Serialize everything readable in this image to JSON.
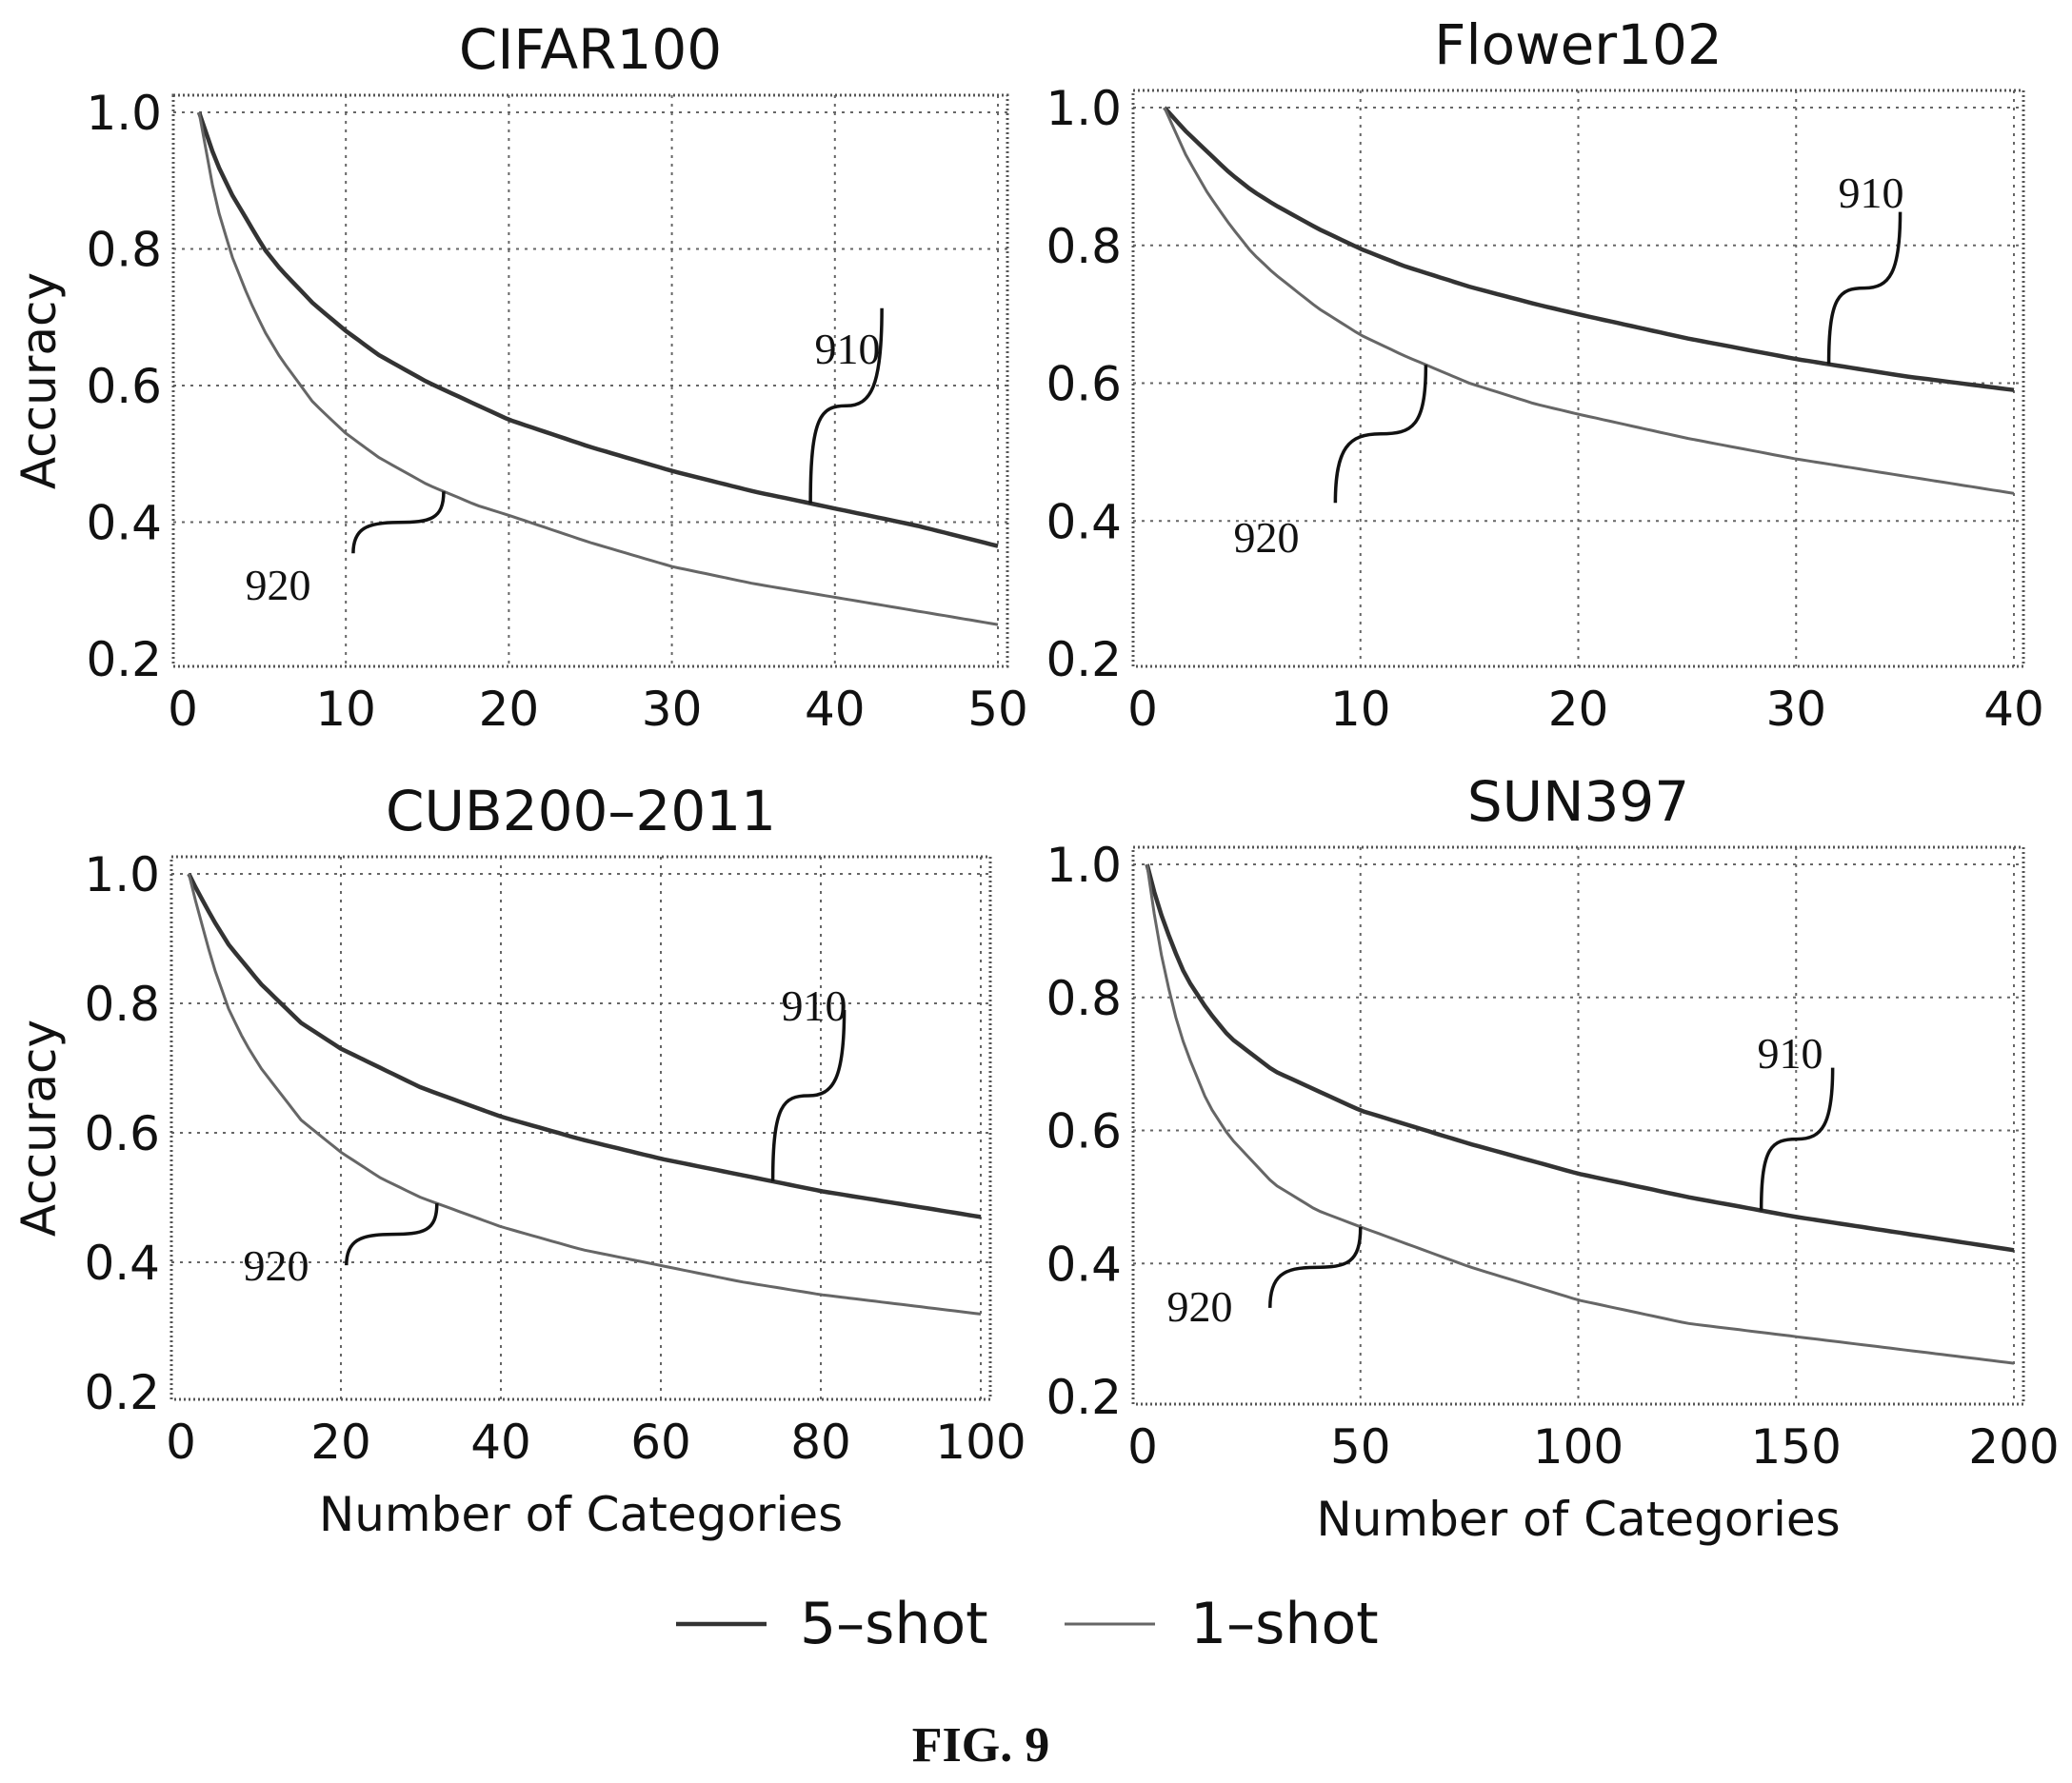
{
  "figure_label": "FIG. 9",
  "legend": {
    "entries": [
      {
        "label": "5–shot",
        "series": "5-shot"
      },
      {
        "label": "1–shot",
        "series": "1-shot"
      }
    ],
    "placement": "bottom-center"
  },
  "colors": {
    "five_shot": "#333333",
    "one_shot": "#666666",
    "grid": "#666666",
    "frame": "#555555"
  },
  "chart_data": [
    {
      "type": "line",
      "title": "CIFAR100",
      "xlabel": "",
      "ylabel": "Accuracy",
      "xlim": [
        0,
        50
      ],
      "ylim": [
        0.2,
        1.0
      ],
      "xticks": [
        "0",
        "10",
        "20",
        "30",
        "40",
        "50"
      ],
      "yticks": [
        "0.2",
        "0.4",
        "0.6",
        "0.8",
        "1.0"
      ],
      "grid": true,
      "x": [
        1,
        2,
        3,
        4,
        5,
        6,
        8,
        10,
        12,
        15,
        18,
        20,
        25,
        30,
        35,
        40,
        45,
        50
      ],
      "series": [
        {
          "name": "5-shot",
          "callout": "910",
          "values": [
            1.0,
            0.93,
            0.88,
            0.84,
            0.8,
            0.77,
            0.72,
            0.68,
            0.645,
            0.605,
            0.572,
            0.55,
            0.51,
            0.475,
            0.445,
            0.42,
            0.395,
            0.365
          ]
        },
        {
          "name": "1-shot",
          "callout": "920",
          "values": [
            1.0,
            0.87,
            0.79,
            0.73,
            0.68,
            0.64,
            0.575,
            0.53,
            0.495,
            0.455,
            0.425,
            0.41,
            0.37,
            0.335,
            0.31,
            0.29,
            0.27,
            0.25
          ]
        }
      ]
    },
    {
      "type": "line",
      "title": "Flower102",
      "xlabel": "",
      "ylabel": "",
      "xlim": [
        0,
        40
      ],
      "ylim": [
        0.2,
        1.0
      ],
      "xticks": [
        "0",
        "10",
        "20",
        "30",
        "40"
      ],
      "yticks": [
        "0.2",
        "0.4",
        "0.6",
        "0.8",
        "1.0"
      ],
      "grid": true,
      "x": [
        1,
        2,
        3,
        4,
        5,
        6,
        8,
        10,
        12,
        15,
        18,
        20,
        25,
        30,
        35,
        40
      ],
      "series": [
        {
          "name": "5-shot",
          "callout": "910",
          "values": [
            1.0,
            0.965,
            0.935,
            0.905,
            0.88,
            0.86,
            0.825,
            0.795,
            0.77,
            0.74,
            0.715,
            0.7,
            0.665,
            0.635,
            0.61,
            0.59
          ]
        },
        {
          "name": "1-shot",
          "callout": "920",
          "values": [
            1.0,
            0.93,
            0.875,
            0.83,
            0.79,
            0.76,
            0.71,
            0.67,
            0.64,
            0.6,
            0.57,
            0.555,
            0.52,
            0.49,
            0.465,
            0.44
          ]
        }
      ]
    },
    {
      "type": "line",
      "title": "CUB200–2011",
      "xlabel": "Number of Categories",
      "ylabel": "Accuracy",
      "xlim": [
        0,
        100
      ],
      "ylim": [
        0.2,
        1.0
      ],
      "xticks": [
        "0",
        "20",
        "40",
        "60",
        "80",
        "100"
      ],
      "yticks": [
        "0.2",
        "0.4",
        "0.6",
        "0.8",
        "1.0"
      ],
      "grid": true,
      "x": [
        1,
        2,
        4,
        6,
        8,
        10,
        15,
        20,
        25,
        30,
        40,
        50,
        60,
        70,
        80,
        90,
        100
      ],
      "series": [
        {
          "name": "5-shot",
          "callout": "910",
          "values": [
            1.0,
            0.975,
            0.93,
            0.89,
            0.86,
            0.83,
            0.77,
            0.73,
            0.7,
            0.67,
            0.625,
            0.59,
            0.56,
            0.535,
            0.51,
            0.49,
            0.47
          ]
        },
        {
          "name": "1-shot",
          "callout": "920",
          "values": [
            1.0,
            0.95,
            0.86,
            0.79,
            0.74,
            0.7,
            0.62,
            0.57,
            0.53,
            0.5,
            0.455,
            0.42,
            0.395,
            0.37,
            0.35,
            0.335,
            0.32
          ]
        }
      ]
    },
    {
      "type": "line",
      "title": "SUN397",
      "xlabel": "Number of Categories",
      "ylabel": "",
      "xlim": [
        0,
        200
      ],
      "ylim": [
        0.2,
        1.0
      ],
      "xticks": [
        "0",
        "50",
        "100",
        "150",
        "200"
      ],
      "yticks": [
        "0.2",
        "0.4",
        "0.6",
        "0.8",
        "1.0"
      ],
      "grid": true,
      "x": [
        1,
        3,
        5,
        8,
        10,
        15,
        20,
        30,
        40,
        50,
        75,
        100,
        125,
        150,
        175,
        200
      ],
      "series": [
        {
          "name": "5-shot",
          "callout": "910",
          "values": [
            1.0,
            0.95,
            0.91,
            0.86,
            0.83,
            0.78,
            0.74,
            0.69,
            0.66,
            0.63,
            0.58,
            0.535,
            0.5,
            0.47,
            0.445,
            0.42
          ]
        },
        {
          "name": "1-shot",
          "callout": "920",
          "values": [
            1.0,
            0.91,
            0.84,
            0.76,
            0.72,
            0.64,
            0.59,
            0.52,
            0.48,
            0.455,
            0.395,
            0.345,
            0.31,
            0.29,
            0.27,
            0.25
          ]
        }
      ]
    }
  ]
}
